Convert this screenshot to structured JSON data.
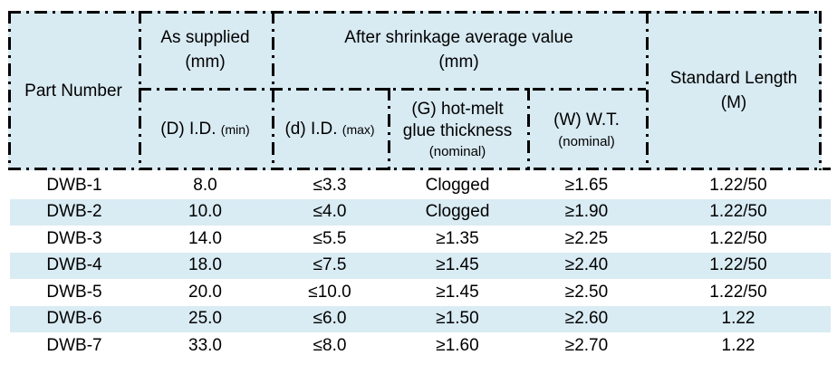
{
  "table": {
    "header": {
      "part_number": "Part Number",
      "as_supplied": {
        "line1": "As supplied",
        "line2": "(mm)"
      },
      "after_shrinkage": {
        "line1": "After shrinkage average value",
        "line2": "(mm)"
      },
      "d_id_min": {
        "main": "(D) I.D.",
        "sub": "(min)"
      },
      "d_id_max": {
        "main": "(d) I.D.",
        "sub": "(max)"
      },
      "glue_thickness": {
        "line1": "(G) hot-melt",
        "line2": "glue thickness",
        "sub": "(nominal)"
      },
      "wall_thickness": {
        "main": "(W) W.T.",
        "sub": "(nominal)"
      },
      "standard_length": {
        "line1": "Standard Length",
        "line2": "(M)"
      }
    },
    "rows": [
      {
        "part": "DWB-1",
        "id_min": "8.0",
        "id_max": "≤3.3",
        "glue": "Clogged",
        "wt": "≥1.65",
        "length": "1.22/50"
      },
      {
        "part": "DWB-2",
        "id_min": "10.0",
        "id_max": "≤4.0",
        "glue": "Clogged",
        "wt": "≥1.90",
        "length": "1.22/50"
      },
      {
        "part": "DWB-3",
        "id_min": "14.0",
        "id_max": "≤5.5",
        "glue": "≥1.35",
        "wt": "≥2.25",
        "length": "1.22/50"
      },
      {
        "part": "DWB-4",
        "id_min": "18.0",
        "id_max": "≤7.5",
        "glue": "≥1.45",
        "wt": "≥2.40",
        "length": "1.22/50"
      },
      {
        "part": "DWB-5",
        "id_min": "20.0",
        "id_max": "≤10.0",
        "glue": "≥1.45",
        "wt": "≥2.50",
        "length": "1.22/50"
      },
      {
        "part": "DWB-6",
        "id_min": "25.0",
        "id_max": "≤6.0",
        "glue": "≥1.50",
        "wt": "≥2.60",
        "length": "1.22"
      },
      {
        "part": "DWB-7",
        "id_min": "33.0",
        "id_max": "≤8.0",
        "glue": "≥1.60",
        "wt": "≥2.70",
        "length": "1.22"
      }
    ],
    "colors": {
      "header_bg": "#d8eaf2",
      "stripe_bg": "#d9ebf3",
      "border": "#000000",
      "text": "#000000"
    }
  }
}
